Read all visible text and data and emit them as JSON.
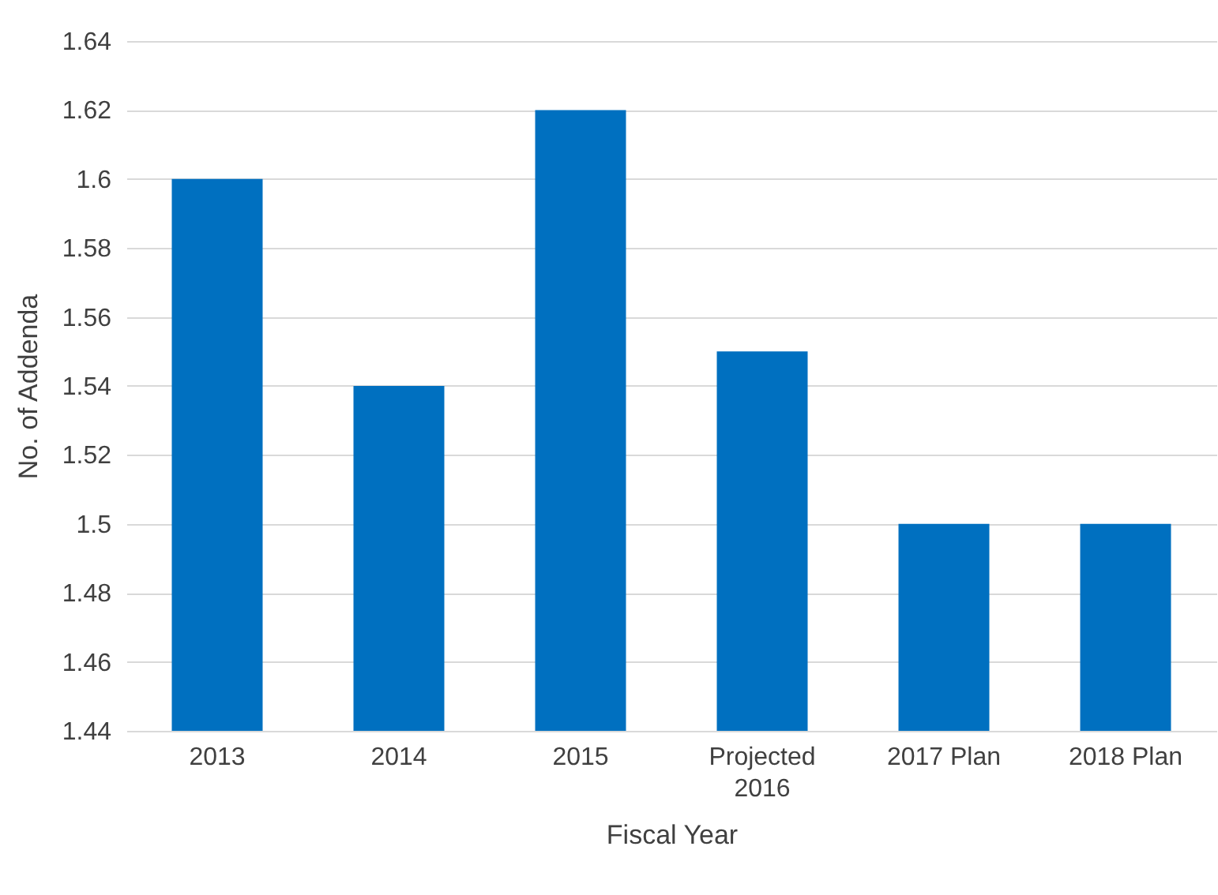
{
  "chart_data": {
    "type": "bar",
    "xlabel": "Fiscal Year",
    "ylabel": "No. of Addenda",
    "categories": [
      "2013",
      "2014",
      "2015",
      "Projected 2016",
      "2017 Plan",
      "2018 Plan"
    ],
    "values": [
      1.6,
      1.54,
      1.62,
      1.55,
      1.5,
      1.5
    ],
    "color": "#0070c0",
    "ylim": [
      1.44,
      1.64
    ],
    "yticks": [
      1.44,
      1.46,
      1.48,
      1.5,
      1.52,
      1.54,
      1.56,
      1.58,
      1.6,
      1.62,
      1.64
    ],
    "grid": "y"
  }
}
